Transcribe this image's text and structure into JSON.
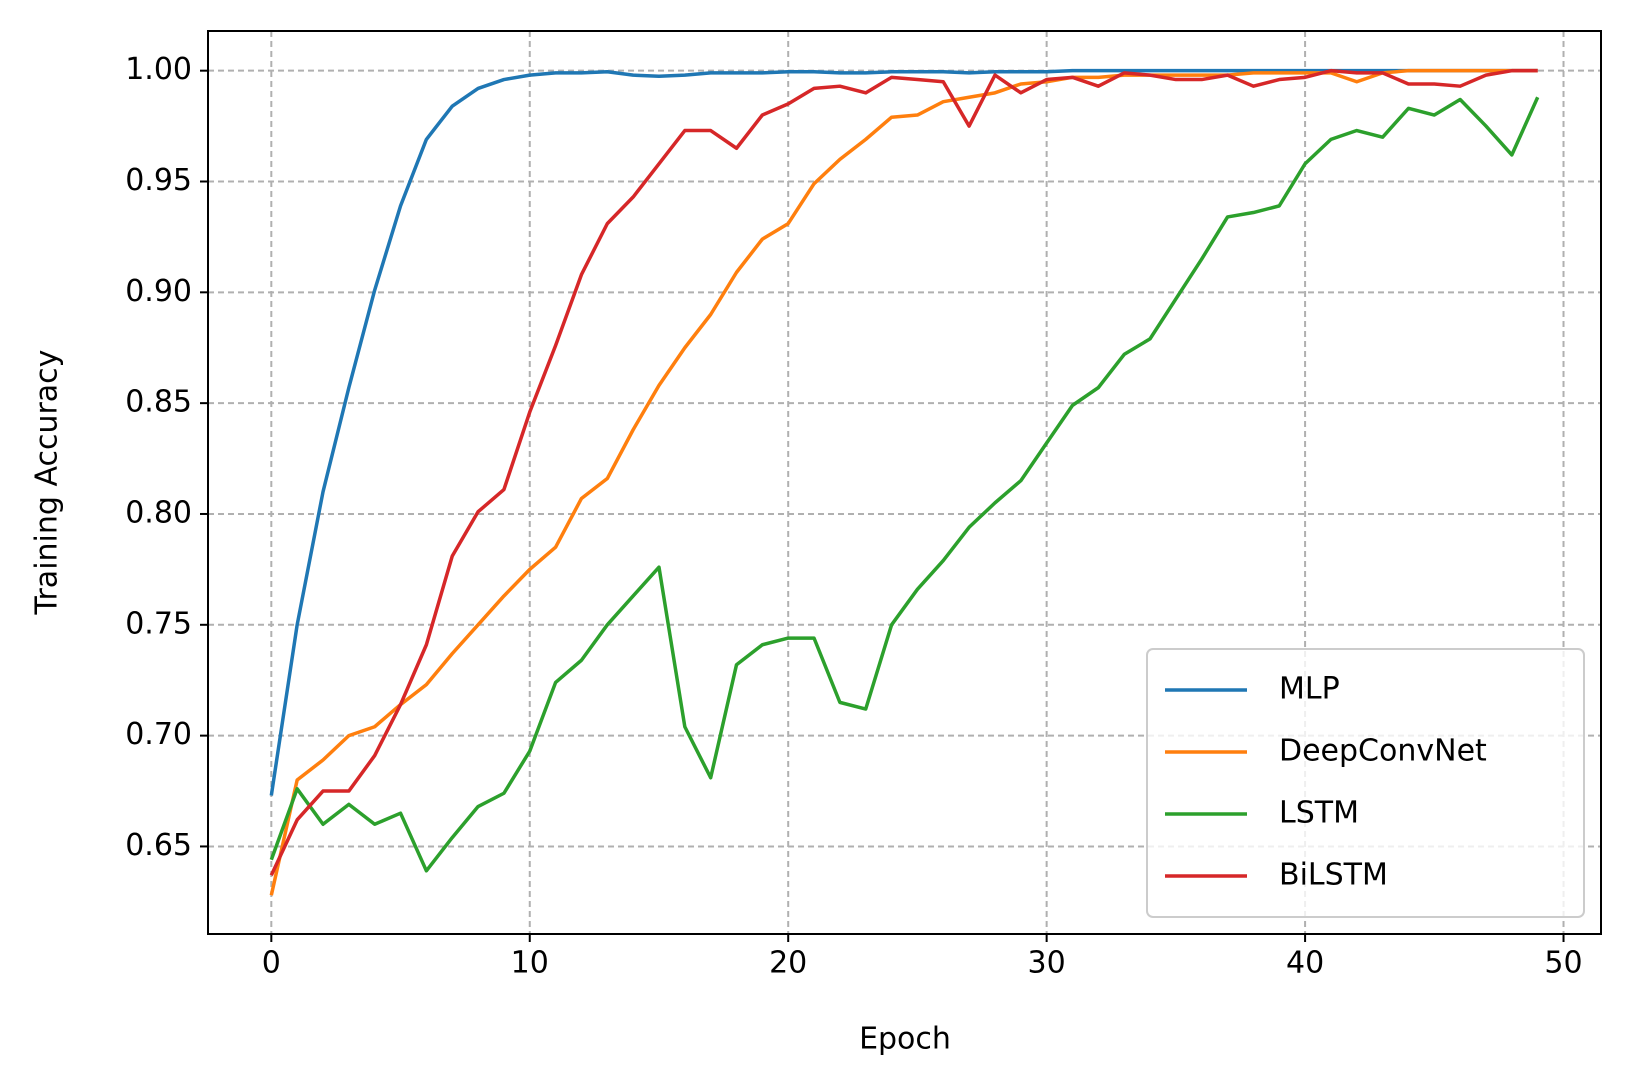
{
  "chart_data": {
    "type": "line",
    "x_label": "Epoch",
    "y_label": "Training Accuracy",
    "x": [
      0,
      1,
      2,
      3,
      4,
      5,
      6,
      7,
      8,
      9,
      10,
      11,
      12,
      13,
      14,
      15,
      16,
      17,
      18,
      19,
      20,
      21,
      22,
      23,
      24,
      25,
      26,
      27,
      28,
      29,
      30,
      31,
      32,
      33,
      34,
      35,
      36,
      37,
      38,
      39,
      40,
      41,
      42,
      43,
      44,
      45,
      46,
      47,
      48,
      49
    ],
    "series": [
      {
        "name": "MLP",
        "color": "#1f77b4",
        "values": [
          0.673,
          0.75,
          0.81,
          0.857,
          0.901,
          0.939,
          0.969,
          0.984,
          0.992,
          0.996,
          0.998,
          0.999,
          0.999,
          0.9995,
          0.998,
          0.9975,
          0.998,
          0.999,
          0.999,
          0.999,
          0.9995,
          0.9995,
          0.999,
          0.999,
          0.9995,
          0.9995,
          0.9995,
          0.999,
          0.9995,
          0.9995,
          0.9995,
          1.0,
          1.0,
          1.0,
          1.0,
          1.0,
          1.0,
          1.0,
          1.0,
          1.0,
          1.0,
          1.0,
          1.0,
          1.0,
          1.0,
          1.0,
          1.0,
          1.0,
          1.0,
          1.0
        ]
      },
      {
        "name": "DeepConvNet",
        "color": "#ff7f0e",
        "values": [
          0.628,
          0.68,
          0.689,
          0.7,
          0.704,
          0.714,
          0.723,
          0.737,
          0.75,
          0.763,
          0.775,
          0.785,
          0.807,
          0.816,
          0.838,
          0.858,
          0.875,
          0.89,
          0.909,
          0.924,
          0.931,
          0.949,
          0.96,
          0.969,
          0.979,
          0.98,
          0.986,
          0.988,
          0.99,
          0.994,
          0.995,
          0.997,
          0.997,
          0.998,
          0.998,
          0.998,
          0.998,
          0.998,
          0.999,
          0.999,
          0.999,
          0.999,
          0.995,
          0.999,
          1.0,
          1.0,
          1.0,
          1.0,
          1.0,
          1.0
        ]
      },
      {
        "name": "LSTM",
        "color": "#2ca02c",
        "values": [
          0.644,
          0.676,
          0.66,
          0.669,
          0.66,
          0.665,
          0.639,
          0.654,
          0.668,
          0.674,
          0.693,
          0.724,
          0.734,
          0.75,
          0.763,
          0.776,
          0.704,
          0.681,
          0.732,
          0.741,
          0.744,
          0.744,
          0.715,
          0.712,
          0.75,
          0.766,
          0.779,
          0.794,
          0.805,
          0.815,
          0.832,
          0.849,
          0.857,
          0.872,
          0.879,
          0.897,
          0.915,
          0.934,
          0.936,
          0.939,
          0.958,
          0.969,
          0.973,
          0.97,
          0.983,
          0.98,
          0.987,
          0.975,
          0.962,
          0.988
        ]
      },
      {
        "name": "BiLSTM",
        "color": "#d62728",
        "values": [
          0.637,
          0.662,
          0.675,
          0.675,
          0.691,
          0.714,
          0.741,
          0.781,
          0.801,
          0.811,
          0.846,
          0.876,
          0.908,
          0.931,
          0.943,
          0.958,
          0.973,
          0.973,
          0.965,
          0.98,
          0.985,
          0.992,
          0.993,
          0.99,
          0.997,
          0.996,
          0.995,
          0.975,
          0.998,
          0.99,
          0.996,
          0.997,
          0.993,
          0.999,
          0.998,
          0.996,
          0.996,
          0.998,
          0.993,
          0.996,
          0.997,
          1.0,
          0.999,
          0.999,
          0.994,
          0.994,
          0.993,
          0.998,
          1.0,
          1.0
        ]
      }
    ],
    "xlim": [
      -2.45,
      51.45
    ],
    "xticks": [
      0,
      10,
      20,
      30,
      40,
      50
    ],
    "ylim": [
      0.6105,
      1.0179
    ],
    "yticks": [
      0.65,
      {
        "value": 0.7,
        "label": "0.70"
      },
      0.75,
      {
        "value": 0.8,
        "label": "0.80"
      },
      0.85,
      {
        "value": 0.9,
        "label": "0.90"
      },
      0.95,
      {
        "value": 1.0,
        "label": "1.00"
      }
    ],
    "grid": true,
    "legend": "lower right"
  }
}
